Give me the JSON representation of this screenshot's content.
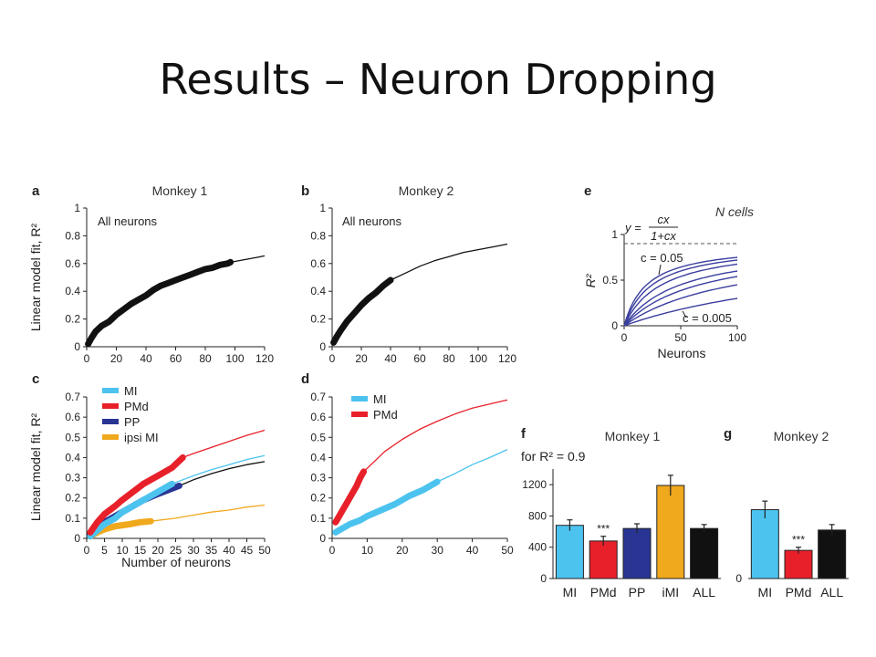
{
  "slide": {
    "title": "Results – Neuron Dropping"
  },
  "colors": {
    "MI": "#4cc3ef",
    "PMd": "#e8202a",
    "PP": "#283593",
    "ipsi_MI": "#f0a81c",
    "ALL": "#111111",
    "black": "#111111",
    "e_curve": "#3b3fa0"
  },
  "chart_data": [
    {
      "panel": "a",
      "type": "line",
      "title": "Monkey 1",
      "annotation": "All neurons",
      "ylabel": "Linear model fit, R²",
      "xlim": [
        0,
        120
      ],
      "ylim": [
        0,
        1
      ],
      "xticks": [
        "0",
        "20",
        "40",
        "60",
        "80",
        "100",
        "120"
      ],
      "yticks": [
        "0",
        "0.2",
        "0.4",
        "0.6",
        "0.8",
        "1"
      ],
      "series": [
        {
          "color": "#111111",
          "style": "thick",
          "x": [
            1,
            3,
            6,
            10,
            15,
            20,
            25,
            30,
            35,
            40,
            45,
            50,
            55,
            60,
            65,
            70,
            75,
            80,
            85,
            90,
            95,
            97
          ],
          "y": [
            0.02,
            0.06,
            0.11,
            0.15,
            0.18,
            0.23,
            0.27,
            0.31,
            0.34,
            0.37,
            0.41,
            0.44,
            0.46,
            0.48,
            0.5,
            0.52,
            0.54,
            0.56,
            0.57,
            0.59,
            0.6,
            0.61
          ]
        },
        {
          "color": "#111111",
          "style": "thin",
          "x": [
            97,
            100,
            105,
            110,
            115,
            120
          ],
          "y": [
            0.61,
            0.615,
            0.625,
            0.635,
            0.645,
            0.655
          ]
        }
      ]
    },
    {
      "panel": "b",
      "type": "line",
      "title": "Monkey 2",
      "annotation": "All neurons",
      "xlim": [
        0,
        120
      ],
      "ylim": [
        0,
        1
      ],
      "xticks": [
        "0",
        "20",
        "40",
        "60",
        "80",
        "100",
        "120"
      ],
      "yticks": [
        "0",
        "0.2",
        "0.4",
        "0.6",
        "0.8",
        "1"
      ],
      "series": [
        {
          "color": "#111111",
          "style": "thick",
          "x": [
            1,
            3,
            6,
            10,
            15,
            20,
            25,
            30,
            35,
            40
          ],
          "y": [
            0.03,
            0.07,
            0.12,
            0.18,
            0.24,
            0.3,
            0.35,
            0.39,
            0.44,
            0.48
          ]
        },
        {
          "color": "#111111",
          "style": "thin",
          "x": [
            40,
            50,
            60,
            70,
            80,
            90,
            100,
            110,
            120
          ],
          "y": [
            0.48,
            0.53,
            0.58,
            0.62,
            0.65,
            0.68,
            0.7,
            0.72,
            0.74
          ]
        }
      ]
    },
    {
      "panel": "c",
      "type": "line",
      "ylabel": "Linear model fit, R²",
      "xlabel": "Number of neurons",
      "xlim": [
        0,
        50
      ],
      "ylim": [
        0,
        0.7
      ],
      "xticks": [
        "0",
        "5",
        "10",
        "15",
        "20",
        "25",
        "30",
        "35",
        "40",
        "45",
        "50"
      ],
      "yticks": [
        "0",
        "0.1",
        "0.2",
        "0.3",
        "0.4",
        "0.5",
        "0.6",
        "0.7"
      ],
      "legend": [
        {
          "label": "MI",
          "color": "#4cc3ef"
        },
        {
          "label": "PMd",
          "color": "#e8202a"
        },
        {
          "label": "PP",
          "color": "#283593"
        },
        {
          "label": "ipsi MI",
          "color": "#f0a81c"
        }
      ],
      "series": [
        {
          "color": "#4cc3ef",
          "style": "thin",
          "x": [
            24,
            30,
            35,
            40,
            45,
            50
          ],
          "y": [
            0.27,
            0.31,
            0.34,
            0.365,
            0.39,
            0.41
          ]
        },
        {
          "color": "#111111",
          "style": "thin",
          "x": [
            26,
            30,
            35,
            40,
            45,
            50
          ],
          "y": [
            0.26,
            0.29,
            0.32,
            0.345,
            0.365,
            0.38
          ]
        },
        {
          "color": "#e8202a",
          "style": "thin",
          "x": [
            27,
            30,
            35,
            40,
            45,
            50
          ],
          "y": [
            0.4,
            0.42,
            0.45,
            0.48,
            0.51,
            0.535
          ]
        },
        {
          "color": "#f0a81c",
          "style": "thin",
          "x": [
            18,
            25,
            30,
            35,
            40,
            45,
            50
          ],
          "y": [
            0.085,
            0.1,
            0.115,
            0.13,
            0.14,
            0.155,
            0.165
          ]
        },
        {
          "color": "#f0a81c",
          "style": "thick",
          "x": [
            1,
            3,
            5,
            8,
            10,
            12,
            15,
            18
          ],
          "y": [
            0.01,
            0.03,
            0.045,
            0.06,
            0.065,
            0.07,
            0.08,
            0.085
          ]
        },
        {
          "color": "#283593",
          "style": "thick",
          "x": [
            1,
            3,
            5,
            8,
            10,
            13,
            16,
            20,
            23,
            26
          ],
          "y": [
            0.02,
            0.05,
            0.08,
            0.11,
            0.13,
            0.16,
            0.19,
            0.22,
            0.24,
            0.26
          ]
        },
        {
          "color": "#4cc3ef",
          "style": "thick",
          "x": [
            1,
            3,
            5,
            8,
            10,
            13,
            16,
            20,
            24
          ],
          "y": [
            0.01,
            0.04,
            0.07,
            0.1,
            0.13,
            0.16,
            0.19,
            0.23,
            0.27
          ]
        },
        {
          "color": "#e8202a",
          "style": "thick",
          "x": [
            1,
            3,
            5,
            8,
            10,
            13,
            16,
            20,
            24,
            27
          ],
          "y": [
            0.03,
            0.08,
            0.12,
            0.16,
            0.19,
            0.23,
            0.27,
            0.31,
            0.35,
            0.4
          ]
        }
      ]
    },
    {
      "panel": "d",
      "type": "line",
      "xlim": [
        0,
        50
      ],
      "ylim": [
        0,
        0.7
      ],
      "xticks": [
        "0",
        "10",
        "20",
        "30",
        "40",
        "50"
      ],
      "yticks": [
        "0",
        "0.1",
        "0.2",
        "0.3",
        "0.4",
        "0.5",
        "0.6",
        "0.7"
      ],
      "legend": [
        {
          "label": "MI",
          "color": "#4cc3ef"
        },
        {
          "label": "PMd",
          "color": "#e8202a"
        }
      ],
      "series": [
        {
          "color": "#e8202a",
          "style": "thin",
          "x": [
            9,
            15,
            20,
            25,
            30,
            35,
            40,
            45,
            50
          ],
          "y": [
            0.33,
            0.43,
            0.49,
            0.54,
            0.58,
            0.615,
            0.645,
            0.665,
            0.685
          ]
        },
        {
          "color": "#4cc3ef",
          "style": "thin",
          "x": [
            30,
            35,
            40,
            45,
            50
          ],
          "y": [
            0.28,
            0.32,
            0.365,
            0.4,
            0.44
          ]
        },
        {
          "color": "#4cc3ef",
          "style": "thick",
          "x": [
            1,
            3,
            5,
            8,
            10,
            14,
            18,
            22,
            26,
            30
          ],
          "y": [
            0.03,
            0.05,
            0.07,
            0.09,
            0.11,
            0.14,
            0.17,
            0.21,
            0.24,
            0.28
          ]
        },
        {
          "color": "#e8202a",
          "style": "thick",
          "x": [
            1,
            2,
            3,
            4,
            5,
            6,
            7,
            8,
            9
          ],
          "y": [
            0.08,
            0.11,
            0.14,
            0.17,
            0.2,
            0.23,
            0.26,
            0.3,
            0.33
          ]
        }
      ]
    },
    {
      "panel": "e",
      "type": "line",
      "title": "N cells",
      "ylabel": "R²",
      "xlabel": "Neurons",
      "xlim": [
        0,
        100
      ],
      "ylim": [
        0,
        1
      ],
      "xticks": [
        "0",
        "50",
        "100"
      ],
      "yticks": [
        "0",
        "0.5",
        "1"
      ],
      "formula": {
        "lhs": "y =",
        "num": "cx",
        "den": "1+cx"
      },
      "label_high": "c = 0.05",
      "label_low": "c = 0.005",
      "asymptote": 0.9,
      "c_values": [
        0.005,
        0.01,
        0.015,
        0.02,
        0.03,
        0.04,
        0.05
      ]
    },
    {
      "panel": "f",
      "type": "bar",
      "title": "Monkey 1",
      "note": "for R² = 0.9",
      "ylim": [
        0,
        1400
      ],
      "yticks": [
        "0",
        "400",
        "800",
        "1200"
      ],
      "categories": [
        "MI",
        "PMd",
        "PP",
        "iMI",
        "ALL"
      ],
      "values": [
        680,
        480,
        640,
        1190,
        640
      ],
      "errors": [
        70,
        60,
        60,
        130,
        50
      ],
      "colors": [
        "#4cc3ef",
        "#e8202a",
        "#283593",
        "#f0a81c",
        "#111111"
      ],
      "significance": {
        "index": 1,
        "text": "***"
      }
    },
    {
      "panel": "g",
      "type": "bar",
      "title": "Monkey 2",
      "ylim": [
        0,
        1400
      ],
      "yticks": [
        "0"
      ],
      "categories": [
        "MI",
        "PMd",
        "ALL"
      ],
      "values": [
        880,
        360,
        620
      ],
      "errors": [
        110,
        40,
        70
      ],
      "colors": [
        "#4cc3ef",
        "#e8202a",
        "#111111"
      ],
      "significance": {
        "index": 1,
        "text": "***"
      }
    }
  ]
}
